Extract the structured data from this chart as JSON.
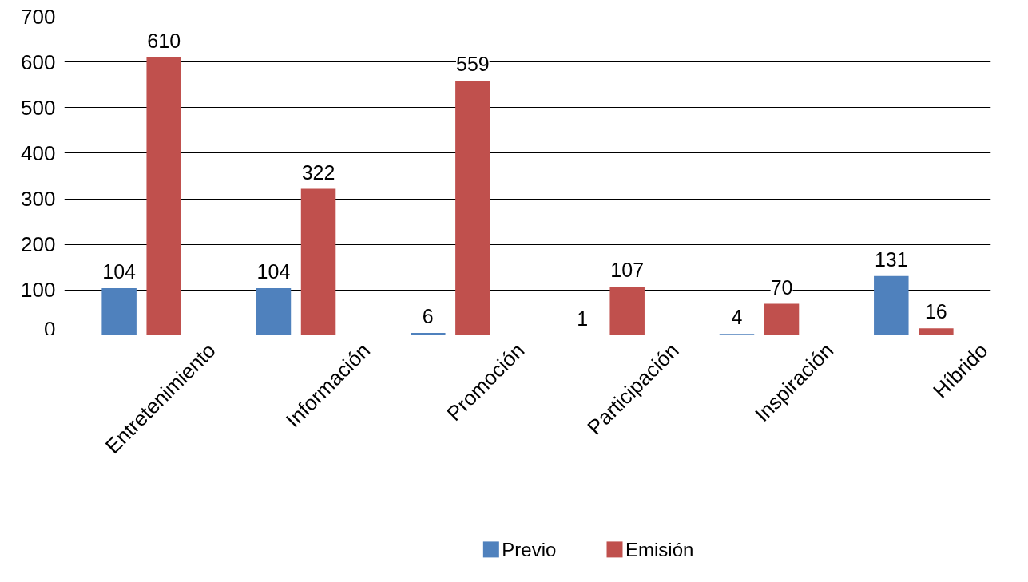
{
  "chart_data": {
    "type": "bar",
    "categories": [
      "Entretenimiento",
      "Información",
      "Promoción",
      "Participación",
      "Inspiración",
      "Híbrido"
    ],
    "series": [
      {
        "name": "Previo",
        "color": "#4f81bd",
        "values": [
          104,
          104,
          6,
          1,
          4,
          131
        ]
      },
      {
        "name": "Emisión",
        "color": "#c0504d",
        "values": [
          610,
          322,
          559,
          107,
          70,
          16
        ]
      }
    ],
    "ylim": [
      0,
      700
    ],
    "yticks": [
      0,
      100,
      200,
      300,
      400,
      500,
      600,
      700
    ],
    "grid": "y",
    "legend": "bottom",
    "data_labels": true
  }
}
